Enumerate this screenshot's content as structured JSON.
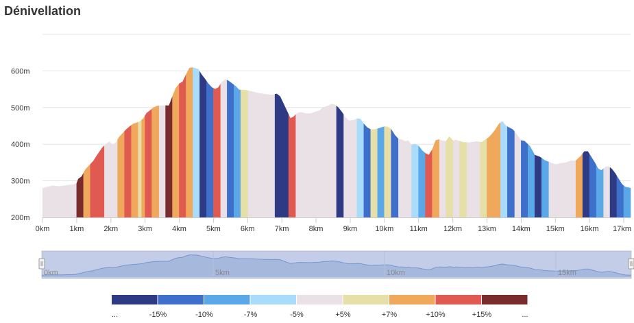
{
  "title": "Dénivellation",
  "chart_data": {
    "type": "area",
    "title": "Dénivellation",
    "y_tick_labels": [
      "200m",
      "300m",
      "400m",
      "500m",
      "600m"
    ],
    "y_ticks": [
      200,
      300,
      400,
      500,
      600
    ],
    "ylim": [
      200,
      700
    ],
    "x_tick_labels": [
      "0km",
      "1km",
      "2km",
      "3km",
      "4km",
      "5km",
      "6km",
      "7km",
      "8km",
      "9km",
      "10km",
      "11km",
      "12km",
      "13km",
      "14km",
      "15km",
      "16km",
      "17km"
    ],
    "x_ticks": [
      0,
      1,
      2,
      3,
      4,
      5,
      6,
      7,
      8,
      9,
      10,
      11,
      12,
      13,
      14,
      15,
      16,
      17
    ],
    "xlim": [
      0,
      17.2
    ],
    "grid": "horizontal",
    "base_color": "#e9e1e6",
    "profile": [
      [
        0,
        280
      ],
      [
        0.1,
        283
      ],
      [
        0.3,
        287
      ],
      [
        0.5,
        285
      ],
      [
        0.7,
        288
      ],
      [
        0.9,
        290
      ],
      [
        1.0,
        293
      ],
      [
        1.05,
        305
      ],
      [
        1.15,
        312
      ],
      [
        1.25,
        330
      ],
      [
        1.35,
        340
      ],
      [
        1.5,
        355
      ],
      [
        1.6,
        370
      ],
      [
        1.75,
        390
      ],
      [
        1.85,
        400
      ],
      [
        1.95,
        407
      ],
      [
        2.05,
        400
      ],
      [
        2.15,
        405
      ],
      [
        2.25,
        420
      ],
      [
        2.35,
        430
      ],
      [
        2.45,
        440
      ],
      [
        2.55,
        448
      ],
      [
        2.65,
        455
      ],
      [
        2.75,
        458
      ],
      [
        2.85,
        462
      ],
      [
        2.95,
        470
      ],
      [
        3.05,
        485
      ],
      [
        3.15,
        492
      ],
      [
        3.25,
        500
      ],
      [
        3.4,
        505
      ],
      [
        3.55,
        506
      ],
      [
        3.65,
        505
      ],
      [
        3.7,
        505
      ],
      [
        3.8,
        530
      ],
      [
        3.9,
        553
      ],
      [
        4.0,
        565
      ],
      [
        4.1,
        570
      ],
      [
        4.2,
        590
      ],
      [
        4.3,
        608
      ],
      [
        4.4,
        609
      ],
      [
        4.55,
        605
      ],
      [
        4.65,
        590
      ],
      [
        4.75,
        578
      ],
      [
        4.85,
        565
      ],
      [
        4.95,
        555
      ],
      [
        5.05,
        550
      ],
      [
        5.15,
        555
      ],
      [
        5.25,
        570
      ],
      [
        5.35,
        578
      ],
      [
        5.45,
        572
      ],
      [
        5.55,
        565
      ],
      [
        5.65,
        558
      ],
      [
        5.75,
        548
      ],
      [
        5.85,
        548
      ],
      [
        5.95,
        547
      ],
      [
        6.1,
        545
      ],
      [
        6.3,
        540
      ],
      [
        6.5,
        537
      ],
      [
        6.7,
        535
      ],
      [
        6.85,
        537
      ],
      [
        6.95,
        530
      ],
      [
        7.05,
        510
      ],
      [
        7.15,
        490
      ],
      [
        7.25,
        470
      ],
      [
        7.35,
        475
      ],
      [
        7.45,
        485
      ],
      [
        7.55,
        488
      ],
      [
        7.7,
        484
      ],
      [
        7.85,
        484
      ],
      [
        7.95,
        488
      ],
      [
        8.1,
        492
      ],
      [
        8.2,
        500
      ],
      [
        8.35,
        505
      ],
      [
        8.45,
        510
      ],
      [
        8.55,
        508
      ],
      [
        8.65,
        500
      ],
      [
        8.75,
        488
      ],
      [
        8.85,
        475
      ],
      [
        8.95,
        465
      ],
      [
        9.1,
        466
      ],
      [
        9.2,
        470
      ],
      [
        9.3,
        468
      ],
      [
        9.4,
        455
      ],
      [
        9.5,
        445
      ],
      [
        9.6,
        440
      ],
      [
        9.7,
        440
      ],
      [
        9.8,
        442
      ],
      [
        9.9,
        445
      ],
      [
        10.0,
        448
      ],
      [
        10.1,
        447
      ],
      [
        10.2,
        440
      ],
      [
        10.3,
        425
      ],
      [
        10.4,
        415
      ],
      [
        10.5,
        413
      ],
      [
        10.6,
        408
      ],
      [
        10.7,
        410
      ],
      [
        10.8,
        398
      ],
      [
        10.9,
        400
      ],
      [
        11.0,
        395
      ],
      [
        11.1,
        383
      ],
      [
        11.2,
        375
      ],
      [
        11.3,
        370
      ],
      [
        11.4,
        385
      ],
      [
        11.5,
        410
      ],
      [
        11.6,
        413
      ],
      [
        11.7,
        410
      ],
      [
        11.8,
        408
      ],
      [
        11.9,
        420
      ],
      [
        12.0,
        410
      ],
      [
        12.1,
        412
      ],
      [
        12.3,
        405
      ],
      [
        12.5,
        405
      ],
      [
        12.7,
        408
      ],
      [
        12.85,
        405
      ],
      [
        12.95,
        412
      ],
      [
        13.05,
        418
      ],
      [
        13.15,
        428
      ],
      [
        13.25,
        440
      ],
      [
        13.35,
        455
      ],
      [
        13.45,
        462
      ],
      [
        13.55,
        450
      ],
      [
        13.65,
        445
      ],
      [
        13.75,
        440
      ],
      [
        13.85,
        430
      ],
      [
        14.0,
        410
      ],
      [
        14.1,
        408
      ],
      [
        14.25,
        395
      ],
      [
        14.4,
        370
      ],
      [
        14.55,
        365
      ],
      [
        14.7,
        355
      ],
      [
        14.85,
        350
      ],
      [
        15.0,
        345
      ],
      [
        15.15,
        348
      ],
      [
        15.3,
        350
      ],
      [
        15.45,
        355
      ],
      [
        15.6,
        355
      ],
      [
        15.75,
        368
      ],
      [
        15.85,
        380
      ],
      [
        15.95,
        380
      ],
      [
        16.05,
        365
      ],
      [
        16.15,
        350
      ],
      [
        16.25,
        333
      ],
      [
        16.35,
        328
      ],
      [
        16.45,
        337
      ],
      [
        16.55,
        340
      ],
      [
        16.65,
        332
      ],
      [
        16.75,
        320
      ],
      [
        16.85,
        305
      ],
      [
        16.95,
        290
      ],
      [
        17.05,
        283
      ],
      [
        17.2,
        280
      ]
    ],
    "segment_colors": {
      "g-15": "#2e3b84",
      "g-10": "#3e6fcb",
      "g-7": "#5aa8e8",
      "g-5": "#a9dcfa",
      "g0": "#e9e1e6",
      "g5": "#e7dfa8",
      "g7": "#f0a85c",
      "g10": "#e05a52",
      "g15": "#7a2c2c"
    },
    "segments": [
      [
        1.0,
        1.2,
        "g15"
      ],
      [
        1.2,
        1.4,
        "g7"
      ],
      [
        1.4,
        1.8,
        "g10"
      ],
      [
        2.2,
        2.4,
        "g7"
      ],
      [
        2.4,
        2.6,
        "g10"
      ],
      [
        2.6,
        2.8,
        "g7"
      ],
      [
        2.8,
        2.9,
        "g5"
      ],
      [
        2.9,
        3.0,
        "g7"
      ],
      [
        3.0,
        3.2,
        "g10"
      ],
      [
        3.2,
        3.4,
        "g7"
      ],
      [
        3.6,
        3.8,
        "g15"
      ],
      [
        3.8,
        4.0,
        "g7"
      ],
      [
        4.0,
        4.2,
        "g10"
      ],
      [
        4.2,
        4.4,
        "g7"
      ],
      [
        4.4,
        4.6,
        "g-5"
      ],
      [
        4.6,
        4.8,
        "g-15"
      ],
      [
        4.8,
        5.0,
        "g-10"
      ],
      [
        5.0,
        5.2,
        "g10"
      ],
      [
        5.4,
        5.6,
        "g-10"
      ],
      [
        5.6,
        5.8,
        "g-7"
      ],
      [
        5.8,
        6.0,
        "g5"
      ],
      [
        6.8,
        7.2,
        "g-15"
      ],
      [
        7.2,
        7.4,
        "g10"
      ],
      [
        8.6,
        8.8,
        "g-15"
      ],
      [
        9.2,
        9.4,
        "g-5"
      ],
      [
        9.4,
        9.6,
        "g-10"
      ],
      [
        9.6,
        9.8,
        "g5"
      ],
      [
        9.8,
        10.0,
        "g-7"
      ],
      [
        10.0,
        10.2,
        "g5"
      ],
      [
        10.2,
        10.4,
        "g-10"
      ],
      [
        10.8,
        11.0,
        "g-5"
      ],
      [
        11.0,
        11.2,
        "g-7"
      ],
      [
        11.2,
        11.4,
        "g10"
      ],
      [
        11.4,
        11.6,
        "g7"
      ],
      [
        11.8,
        12.0,
        "g5"
      ],
      [
        12.2,
        12.4,
        "g5"
      ],
      [
        12.8,
        13.0,
        "g5"
      ],
      [
        13.0,
        13.4,
        "g7"
      ],
      [
        13.4,
        13.6,
        "g-5"
      ],
      [
        13.6,
        13.8,
        "g-10"
      ],
      [
        14.0,
        14.2,
        "g-10"
      ],
      [
        14.2,
        14.4,
        "g-7"
      ],
      [
        14.4,
        14.6,
        "g-15"
      ],
      [
        14.6,
        14.8,
        "g-7"
      ],
      [
        15.6,
        15.8,
        "g7"
      ],
      [
        15.8,
        16.0,
        "g-15"
      ],
      [
        16.0,
        16.2,
        "g-10"
      ],
      [
        16.2,
        16.4,
        "g-7"
      ],
      [
        16.6,
        16.8,
        "g-15"
      ],
      [
        16.8,
        17.0,
        "g-10"
      ],
      [
        17.0,
        17.2,
        "g-7"
      ]
    ]
  },
  "navigator": {
    "labels": [
      "0km",
      "5km",
      "10km",
      "15km"
    ],
    "label_positions_km": [
      0,
      5,
      10,
      15
    ]
  },
  "legend": {
    "labels": [
      "...",
      "-15%",
      "-10%",
      "-7%",
      "-5%",
      "+5%",
      "+7%",
      "+10%",
      "+15%",
      "..."
    ],
    "colors": [
      "#2e3b84",
      "#3e6fcb",
      "#5aa8e8",
      "#a9dcfa",
      "#e9e1e6",
      "#e7dfa8",
      "#f0a85c",
      "#e05a52",
      "#7a2c2c"
    ]
  }
}
